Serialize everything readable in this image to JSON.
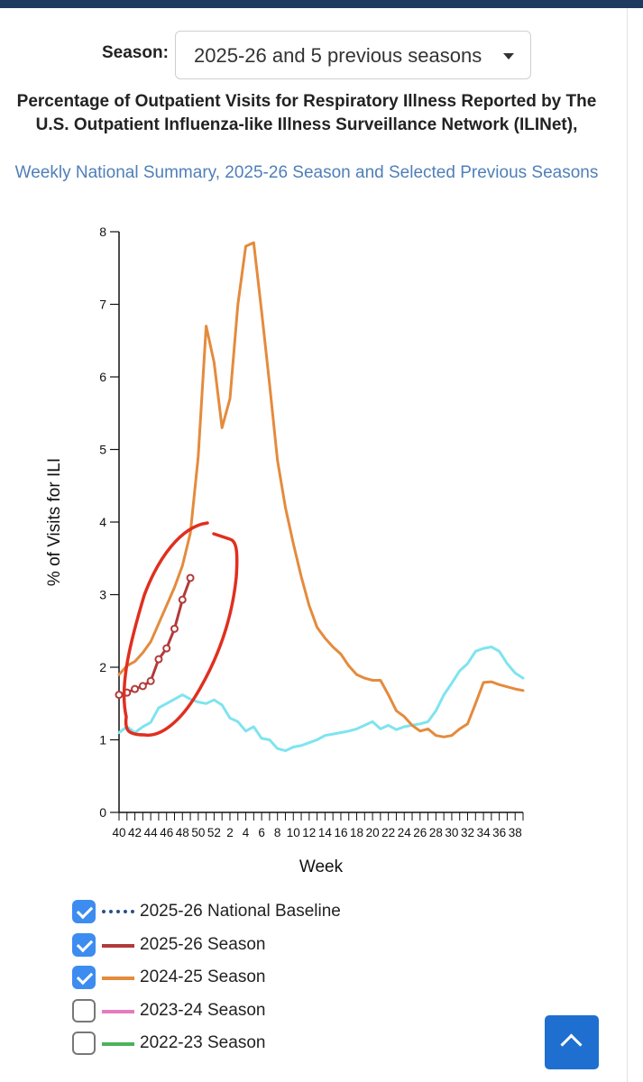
{
  "season_selector": {
    "label": "Season:",
    "selected": "2025-26 and 5 previous seasons"
  },
  "title": "Percentage of Outpatient Visits for Respiratory Illness Reported by The U.S. Outpatient Influenza-like Illness Surveillance Network (ILINet),",
  "subtitle": "Weekly National Summary, 2025-26 Season and Selected Previous Seasons",
  "legend": [
    {
      "label": "2025-26 National Baseline",
      "checked": true,
      "color": "#2a4f88",
      "style": "dotted"
    },
    {
      "label": "2025-26 Season",
      "checked": true,
      "color": "#b23a3a",
      "style": "solid"
    },
    {
      "label": "2024-25 Season",
      "checked": true,
      "color": "#e48b3d",
      "style": "solid"
    },
    {
      "label": "2023-24 Season",
      "checked": false,
      "color": "#e57bbf",
      "style": "solid"
    },
    {
      "label": "2022-23 Season",
      "checked": false,
      "color": "#4bb35a",
      "style": "solid"
    }
  ],
  "chart_data": {
    "type": "line",
    "title": "Percentage of Outpatient Visits for Respiratory Illness Reported by The U.S. Outpatient Influenza-like Illness Surveillance Network (ILINet),",
    "subtitle": "Weekly National Summary, 2025-26 Season and Selected Previous Seasons",
    "xlabel": "Week",
    "ylabel": "% of Visits for ILI",
    "ylim": [
      0,
      8
    ],
    "yticks": [
      0,
      1,
      2,
      3,
      4,
      5,
      6,
      7,
      8
    ],
    "weeks": [
      40,
      41,
      42,
      43,
      44,
      45,
      46,
      47,
      48,
      49,
      50,
      51,
      52,
      1,
      2,
      3,
      4,
      5,
      6,
      7,
      8,
      9,
      10,
      11,
      12,
      13,
      14,
      15,
      16,
      17,
      18,
      19,
      20,
      21,
      22,
      23,
      24,
      25,
      26,
      27,
      28,
      29,
      30,
      31,
      32,
      33,
      34,
      35,
      36,
      37,
      38,
      39
    ],
    "xtick_labels": [
      "40",
      "42",
      "44",
      "46",
      "48",
      "50",
      "52",
      "2",
      "4",
      "6",
      "8",
      "10",
      "12",
      "14",
      "16",
      "18",
      "20",
      "22",
      "24",
      "26",
      "28",
      "30",
      "32",
      "34",
      "36",
      "38"
    ],
    "series": [
      {
        "name": "2025-26 Season",
        "color": "#b23a3a",
        "markers": true,
        "values": [
          1.62,
          1.65,
          1.7,
          1.74,
          1.81,
          2.11,
          2.26,
          2.53,
          2.93,
          3.23
        ]
      },
      {
        "name": "2024-25 Season",
        "color": "#e48b3d",
        "markers": false,
        "values": [
          1.9,
          2.02,
          2.08,
          2.2,
          2.35,
          2.6,
          2.85,
          3.1,
          3.4,
          3.85,
          4.9,
          6.7,
          6.2,
          5.3,
          5.7,
          7.0,
          7.8,
          7.85,
          6.9,
          5.9,
          4.85,
          4.2,
          3.7,
          3.25,
          2.85,
          2.55,
          2.4,
          2.28,
          2.18,
          2.02,
          1.9,
          1.85,
          1.82,
          1.82,
          1.62,
          1.4,
          1.32,
          1.2,
          1.12,
          1.15,
          1.06,
          1.04,
          1.06,
          1.15,
          1.22,
          1.5,
          1.79,
          1.8,
          1.76,
          1.73,
          1.7,
          1.68
        ]
      },
      {
        "color": "#7ee4ef",
        "markers": false,
        "values": [
          1.1,
          1.18,
          1.1,
          1.18,
          1.24,
          1.44,
          1.5,
          1.56,
          1.62,
          1.56,
          1.52,
          1.5,
          1.55,
          1.48,
          1.3,
          1.25,
          1.12,
          1.18,
          1.02,
          1.0,
          0.88,
          0.85,
          0.9,
          0.92,
          0.96,
          1.0,
          1.06,
          1.08,
          1.1,
          1.12,
          1.15,
          1.2,
          1.25,
          1.15,
          1.2,
          1.14,
          1.18,
          1.2,
          1.22,
          1.25,
          1.4,
          1.62,
          1.78,
          1.95,
          2.05,
          2.22,
          2.26,
          2.28,
          2.22,
          2.05,
          1.92,
          1.85
        ]
      }
    ],
    "annotation": {
      "type": "hand-drawn-circle",
      "color": "#e02f1f"
    },
    "grid": false,
    "legend_position": "bottom"
  },
  "icons": {
    "dropdown": "caret-down-icon",
    "back_to_top": "chevron-up-icon",
    "checkbox_checked": "checkmark-icon"
  }
}
